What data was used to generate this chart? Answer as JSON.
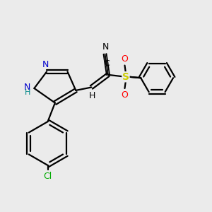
{
  "bg_color": "#ebebeb",
  "bond_color": "#000000",
  "nitrogen_color": "#0000cc",
  "sulfur_color": "#cccc00",
  "oxygen_color": "#ff0000",
  "chlorine_color": "#00aa00",
  "nh_color": "#008888",
  "lw": 1.6,
  "fs": 9,
  "xlim": [
    0,
    10
  ],
  "ylim": [
    0,
    10
  ]
}
